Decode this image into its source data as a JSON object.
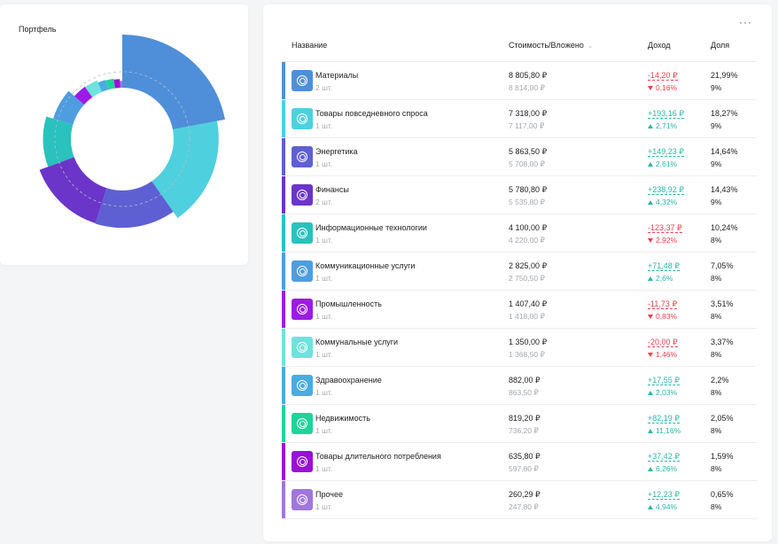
{
  "portfolio": {
    "title": "Портфель",
    "chart_data": {
      "type": "pie",
      "variant": "radial-donut",
      "title": "",
      "start_angle": "top",
      "slices": [
        {
          "label": "Материалы",
          "share": 21.99,
          "radius_weight": 1.0,
          "color": "#4f8fd9"
        },
        {
          "label": "Товары повседневного спроса",
          "share": 18.27,
          "radius_weight": 0.83,
          "color": "#4fd0de"
        },
        {
          "label": "Энергетика",
          "share": 14.64,
          "radius_weight": 0.67,
          "color": "#5e5fd3"
        },
        {
          "label": "Финансы",
          "share": 14.43,
          "radius_weight": 0.66,
          "color": "#6b35c9"
        },
        {
          "label": "Информационные технологии",
          "share": 10.24,
          "radius_weight": 0.47,
          "color": "#29c2bd"
        },
        {
          "label": "Коммуникационные услуги",
          "share": 7.05,
          "radius_weight": 0.32,
          "color": "#4d9de0"
        },
        {
          "label": "Промышленность",
          "share": 3.51,
          "radius_weight": 0.16,
          "color": "#9c1ce6"
        },
        {
          "label": "Коммунальные услуги",
          "share": 3.37,
          "radius_weight": 0.15,
          "color": "#6ee3dd"
        },
        {
          "label": "Здравоохранение",
          "share": 2.2,
          "radius_weight": 0.1,
          "color": "#4aace0"
        },
        {
          "label": "Недвижимость",
          "share": 2.05,
          "radius_weight": 0.09,
          "color": "#1fd49b"
        },
        {
          "label": "Товары длительного потребления",
          "share": 1.59,
          "radius_weight": 0.07,
          "color": "#9a10d8"
        },
        {
          "label": "Прочее",
          "share": 0.65,
          "radius_weight": 0.03,
          "color": "#a176dd"
        }
      ]
    }
  },
  "table": {
    "more_label": "···",
    "headers": {
      "name": "Название",
      "value": "Стоимость/Вложено",
      "income": "Доход",
      "share": "Доля"
    },
    "sort_icon": "⌄",
    "rows": [
      {
        "name": "Материалы",
        "qty": "2 шт.",
        "value": "8 805,80 ₽",
        "invested": "8 814,00 ₽",
        "income": "-14,20 ₽",
        "income_pct": "0,16%",
        "direction": "down",
        "share": "21,99%",
        "weight": "9%",
        "color": "#4f8fd9"
      },
      {
        "name": "Товары повседневного спроса",
        "qty": "1 шт.",
        "value": "7 318,00 ₽",
        "invested": "7 117,00 ₽",
        "income": "+193,16 ₽",
        "income_pct": "2,71%",
        "direction": "up",
        "share": "18,27%",
        "weight": "9%",
        "color": "#4fd0de"
      },
      {
        "name": "Энергетика",
        "qty": "1 шт.",
        "value": "5 863,50 ₽",
        "invested": "5 708,00 ₽",
        "income": "+149,23 ₽",
        "income_pct": "2,61%",
        "direction": "up",
        "share": "14,64%",
        "weight": "9%",
        "color": "#5e5fd3"
      },
      {
        "name": "Финансы",
        "qty": "2 шт.",
        "value": "5 780,80 ₽",
        "invested": "5 535,80 ₽",
        "income": "+238,92 ₽",
        "income_pct": "4,32%",
        "direction": "up",
        "share": "14,43%",
        "weight": "9%",
        "color": "#6b35c9"
      },
      {
        "name": "Информационные технологии",
        "qty": "1 шт.",
        "value": "4 100,00 ₽",
        "invested": "4 220,00 ₽",
        "income": "-123,37 ₽",
        "income_pct": "2,92%",
        "direction": "down",
        "share": "10,24%",
        "weight": "8%",
        "color": "#29c2bd"
      },
      {
        "name": "Коммуникационные услуги",
        "qty": "1 шт.",
        "value": "2 825,00 ₽",
        "invested": "2 750,50 ₽",
        "income": "+71,48 ₽",
        "income_pct": "2,6%",
        "direction": "up",
        "share": "7,05%",
        "weight": "8%",
        "color": "#4d9de0"
      },
      {
        "name": "Промышленность",
        "qty": "1 шт.",
        "value": "1 407,40 ₽",
        "invested": "1 418,00 ₽",
        "income": "-11,73 ₽",
        "income_pct": "0,83%",
        "direction": "down",
        "share": "3,51%",
        "weight": "8%",
        "color": "#9c1ce6"
      },
      {
        "name": "Коммунальные услуги",
        "qty": "1 шт.",
        "value": "1 350,00 ₽",
        "invested": "1 368,50 ₽",
        "income": "-20,00 ₽",
        "income_pct": "1,46%",
        "direction": "down",
        "share": "3,37%",
        "weight": "8%",
        "color": "#6ee3dd"
      },
      {
        "name": "Здравоохранение",
        "qty": "1 шт.",
        "value": "882,00 ₽",
        "invested": "863,50 ₽",
        "income": "+17,55 ₽",
        "income_pct": "2,03%",
        "direction": "up",
        "share": "2,2%",
        "weight": "8%",
        "color": "#4aace0"
      },
      {
        "name": "Недвижимость",
        "qty": "1 шт.",
        "value": "819,20 ₽",
        "invested": "736,20 ₽",
        "income": "+82,19 ₽",
        "income_pct": "11,16%",
        "direction": "up",
        "share": "2,05%",
        "weight": "8%",
        "color": "#1fd49b"
      },
      {
        "name": "Товары длительного потребления",
        "qty": "1 шт.",
        "value": "635,80 ₽",
        "invested": "597,80 ₽",
        "income": "+37,42 ₽",
        "income_pct": "6,26%",
        "direction": "up",
        "share": "1,59%",
        "weight": "8%",
        "color": "#9a10d8"
      },
      {
        "name": "Прочее",
        "qty": "1 шт.",
        "value": "260,29 ₽",
        "invested": "247,80 ₽",
        "income": "+12,23 ₽",
        "income_pct": "4,94%",
        "direction": "up",
        "share": "0,65%",
        "weight": "8%",
        "color": "#a176dd"
      }
    ]
  }
}
